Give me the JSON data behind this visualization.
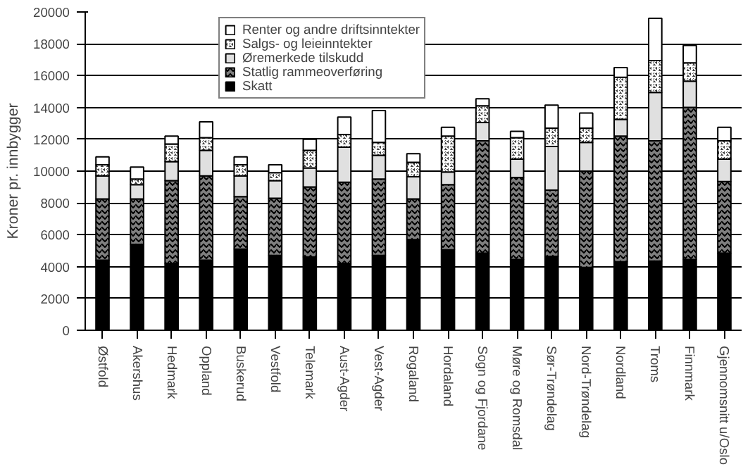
{
  "chart_data": {
    "type": "bar",
    "stacked": true,
    "ylabel": "Kroner pr. innbygger",
    "ylim": [
      0,
      20000
    ],
    "yticks": [
      0,
      2000,
      4000,
      6000,
      8000,
      10000,
      12000,
      14000,
      16000,
      18000,
      20000
    ],
    "grid": "y",
    "legend": "top",
    "categories": [
      "Østfold",
      "Akershus",
      "Hedmark",
      "Oppland",
      "Buskerud",
      "Vestfold",
      "Telemark",
      "Aust-Agder",
      "Vest-Agder",
      "Rogaland",
      "Hordaland",
      "Sogn og Fjordane",
      "Møre og Romsdal",
      "Sør-Trøndelag",
      "Nord-Trøndelag",
      "Nordland",
      "Troms",
      "Finnmark",
      "Gjennomsnitt u/Oslo"
    ],
    "series": [
      {
        "name": "Skatt",
        "color": "#000000",
        "values": [
          4400,
          5400,
          4200,
          4400,
          5100,
          4700,
          4600,
          4200,
          4700,
          5700,
          5050,
          4850,
          4450,
          4650,
          3950,
          4300,
          4350,
          4450,
          4850
        ]
      },
      {
        "name": "Statlig rammeoverføring",
        "color": "#808080",
        "values": [
          3850,
          2850,
          5200,
          5300,
          3300,
          3600,
          4400,
          5100,
          4800,
          2550,
          4100,
          7050,
          5150,
          4150,
          6050,
          7900,
          7550,
          9550,
          4500
        ]
      },
      {
        "name": "Øremerkede tilskudd",
        "color": "#e0e0e0",
        "values": [
          1450,
          900,
          1200,
          1600,
          1300,
          1100,
          1200,
          2200,
          1500,
          1400,
          800,
          1150,
          1150,
          2750,
          1800,
          1050,
          3050,
          1650,
          1400
        ]
      },
      {
        "name": "Salgs- og leieinntekter",
        "color": "#404040",
        "values": [
          700,
          350,
          1100,
          800,
          700,
          500,
          1100,
          800,
          800,
          900,
          2250,
          1050,
          1350,
          1150,
          900,
          2650,
          2000,
          1150,
          1150
        ]
      },
      {
        "name": "Renter og andre driftsinntekter",
        "color": "#ffffff",
        "values": [
          500,
          750,
          500,
          1000,
          500,
          500,
          700,
          1100,
          2000,
          550,
          550,
          450,
          400,
          1450,
          950,
          600,
          2650,
          1100,
          850
        ]
      }
    ]
  }
}
